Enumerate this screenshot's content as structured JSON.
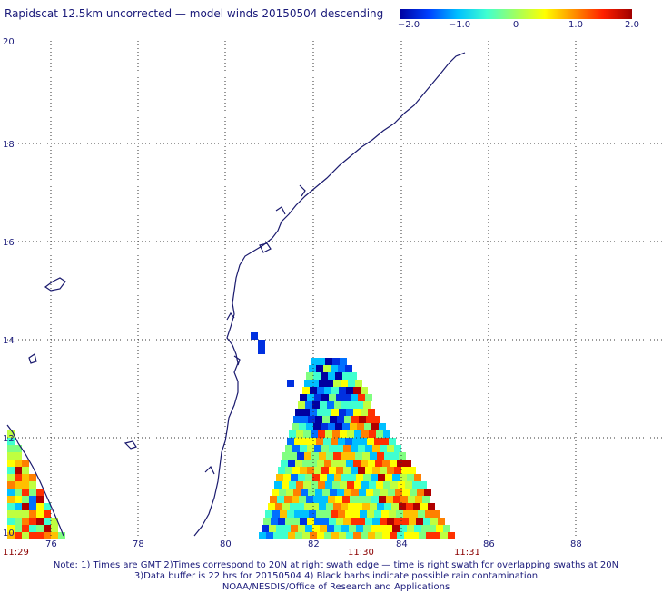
{
  "title": "Rapidscat 12.5km uncorrected — model winds 20150504 descending",
  "colorbar": {
    "labels": [
      "−2.0",
      "−1.0",
      "0",
      "1.0",
      "2.0"
    ],
    "min": -2.0,
    "max": 2.0,
    "colors": [
      "#0000a0",
      "#0040ff",
      "#00c0ff",
      "#40ffd0",
      "#a0ff60",
      "#ffff00",
      "#ff9000",
      "#ff2000",
      "#a00000"
    ]
  },
  "map": {
    "lon_labels": [
      "76",
      "78",
      "80",
      "82",
      "84",
      "86",
      "88"
    ],
    "lat_labels": [
      "20",
      "18",
      "16",
      "14",
      "12",
      "10"
    ],
    "lon_range": [
      75,
      89.5
    ],
    "lat_range": [
      10,
      20
    ]
  },
  "times": {
    "left": "11:29",
    "mid": "11:30",
    "right": "11:31"
  },
  "notes": {
    "line1": "Note: 1) Times are GMT 2)Times correspond to 20N at right swath edge — time is right swath for overlapping swaths at 20N",
    "line2": "3)Data buffer is 22 hrs for 20150504 4) Black barbs indicate possible rain contamination",
    "line3": "NOAA/NESDIS/Office of Research and Applications"
  }
}
